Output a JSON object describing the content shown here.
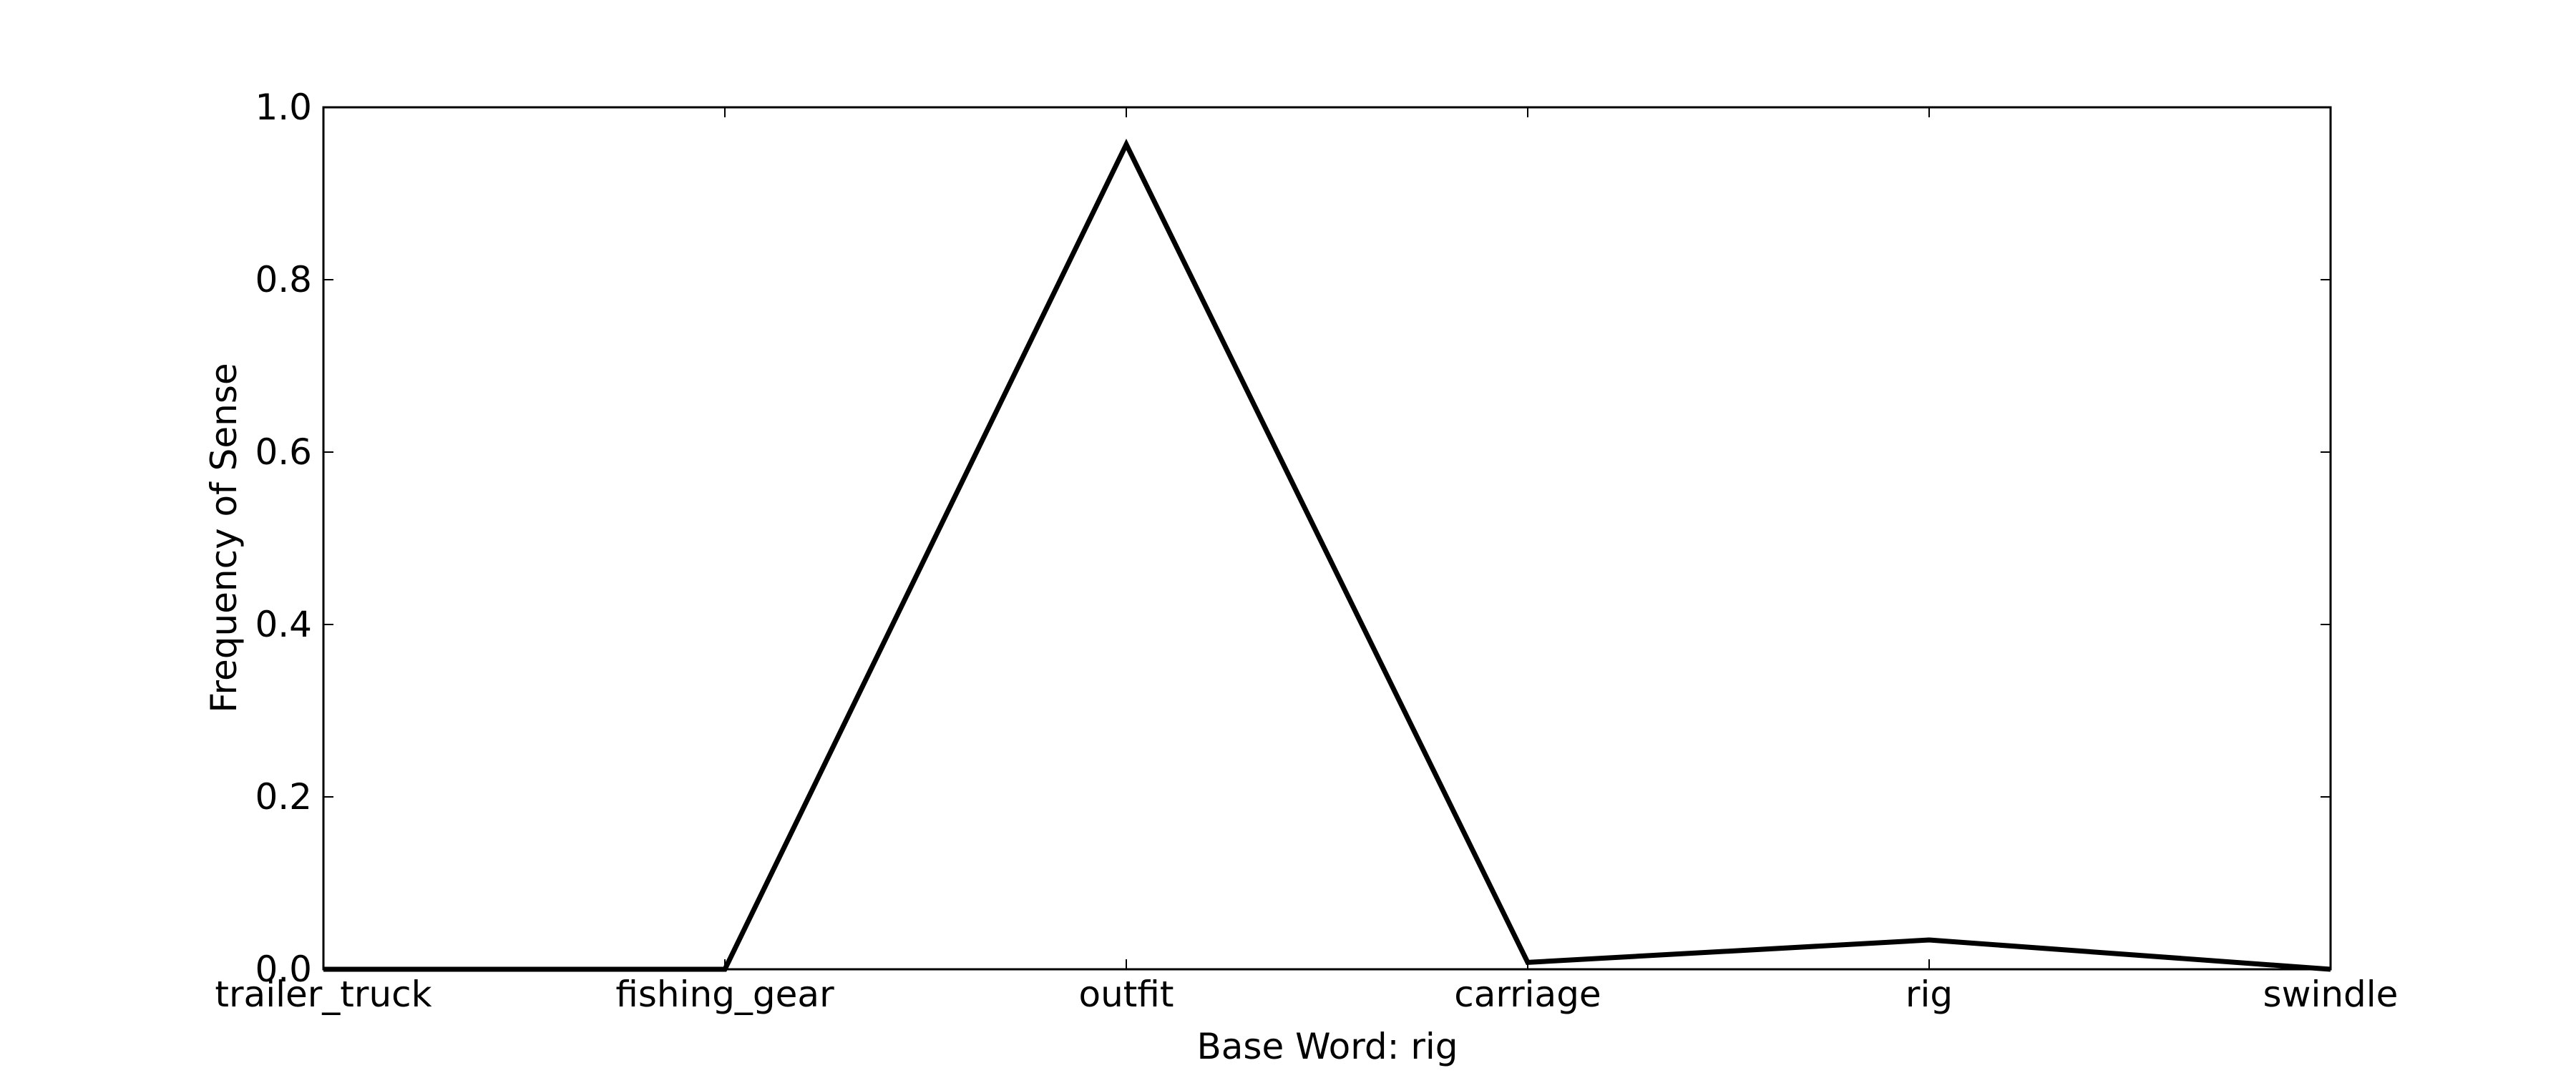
{
  "chart_data": {
    "type": "line",
    "title": "",
    "xlabel": "Base Word: rig",
    "ylabel": "Frequency of Sense",
    "categories": [
      "trailer_truck",
      "fishing_gear",
      "outfit",
      "carriage",
      "rig",
      "swindle"
    ],
    "series": [
      {
        "values": [
          0.0,
          0.0,
          0.957,
          0.008,
          0.034,
          0.0
        ],
        "color": "#000000"
      }
    ],
    "ylim": [
      0.0,
      1.0
    ],
    "yticks": [
      0.0,
      0.2,
      0.4,
      0.6,
      0.8,
      1.0
    ],
    "ytick_labels": [
      "0.0",
      "0.2",
      "0.4",
      "0.6",
      "0.8",
      "1.0"
    ],
    "grid": false,
    "legend": "none"
  }
}
